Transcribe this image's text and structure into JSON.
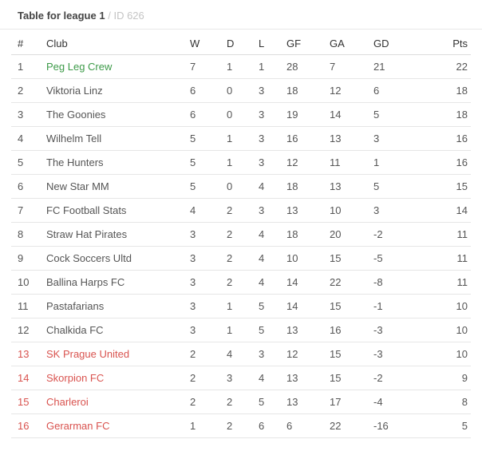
{
  "header": {
    "title": "Table for league 1",
    "separator": "/",
    "id_label": "ID 626"
  },
  "columns": {
    "rank": "#",
    "club": "Club",
    "w": "W",
    "d": "D",
    "l": "L",
    "gf": "GF",
    "ga": "GA",
    "gd": "GD",
    "pts": "Pts"
  },
  "rows": [
    {
      "rank": "1",
      "club": "Peg Leg Crew",
      "w": "7",
      "d": "1",
      "l": "1",
      "gf": "28",
      "ga": "7",
      "gd": "21",
      "pts": "22",
      "zone": "promo"
    },
    {
      "rank": "2",
      "club": "Viktoria Linz",
      "w": "6",
      "d": "0",
      "l": "3",
      "gf": "18",
      "ga": "12",
      "gd": "6",
      "pts": "18",
      "zone": "normal"
    },
    {
      "rank": "3",
      "club": "The Goonies",
      "w": "6",
      "d": "0",
      "l": "3",
      "gf": "19",
      "ga": "14",
      "gd": "5",
      "pts": "18",
      "zone": "normal"
    },
    {
      "rank": "4",
      "club": "Wilhelm Tell",
      "w": "5",
      "d": "1",
      "l": "3",
      "gf": "16",
      "ga": "13",
      "gd": "3",
      "pts": "16",
      "zone": "normal"
    },
    {
      "rank": "5",
      "club": "The Hunters",
      "w": "5",
      "d": "1",
      "l": "3",
      "gf": "12",
      "ga": "11",
      "gd": "1",
      "pts": "16",
      "zone": "normal"
    },
    {
      "rank": "6",
      "club": "New Star MM",
      "w": "5",
      "d": "0",
      "l": "4",
      "gf": "18",
      "ga": "13",
      "gd": "5",
      "pts": "15",
      "zone": "normal"
    },
    {
      "rank": "7",
      "club": "FC Football Stats",
      "w": "4",
      "d": "2",
      "l": "3",
      "gf": "13",
      "ga": "10",
      "gd": "3",
      "pts": "14",
      "zone": "normal"
    },
    {
      "rank": "8",
      "club": "Straw Hat Pirates",
      "w": "3",
      "d": "2",
      "l": "4",
      "gf": "18",
      "ga": "20",
      "gd": "-2",
      "pts": "11",
      "zone": "normal"
    },
    {
      "rank": "9",
      "club": "Cock Soccers Ultd",
      "w": "3",
      "d": "2",
      "l": "4",
      "gf": "10",
      "ga": "15",
      "gd": "-5",
      "pts": "11",
      "zone": "normal"
    },
    {
      "rank": "10",
      "club": "Ballina Harps FC",
      "w": "3",
      "d": "2",
      "l": "4",
      "gf": "14",
      "ga": "22",
      "gd": "-8",
      "pts": "11",
      "zone": "normal"
    },
    {
      "rank": "11",
      "club": "Pastafarians",
      "w": "3",
      "d": "1",
      "l": "5",
      "gf": "14",
      "ga": "15",
      "gd": "-1",
      "pts": "10",
      "zone": "normal"
    },
    {
      "rank": "12",
      "club": "Chalkida FC",
      "w": "3",
      "d": "1",
      "l": "5",
      "gf": "13",
      "ga": "16",
      "gd": "-3",
      "pts": "10",
      "zone": "normal"
    },
    {
      "rank": "13",
      "club": "SK Prague United",
      "w": "2",
      "d": "4",
      "l": "3",
      "gf": "12",
      "ga": "15",
      "gd": "-3",
      "pts": "10",
      "zone": "relegation"
    },
    {
      "rank": "14",
      "club": "Skorpion FC",
      "w": "2",
      "d": "3",
      "l": "4",
      "gf": "13",
      "ga": "15",
      "gd": "-2",
      "pts": "9",
      "zone": "relegation"
    },
    {
      "rank": "15",
      "club": "Charleroi",
      "w": "2",
      "d": "2",
      "l": "5",
      "gf": "13",
      "ga": "17",
      "gd": "-4",
      "pts": "8",
      "zone": "relegation"
    },
    {
      "rank": "16",
      "club": "Gerarman FC",
      "w": "1",
      "d": "2",
      "l": "6",
      "gf": "6",
      "ga": "22",
      "gd": "-16",
      "pts": "5",
      "zone": "relegation"
    }
  ],
  "colors": {
    "points": "#3c9a48",
    "promotion": "#3c9a48",
    "relegation": "#d9534f"
  }
}
